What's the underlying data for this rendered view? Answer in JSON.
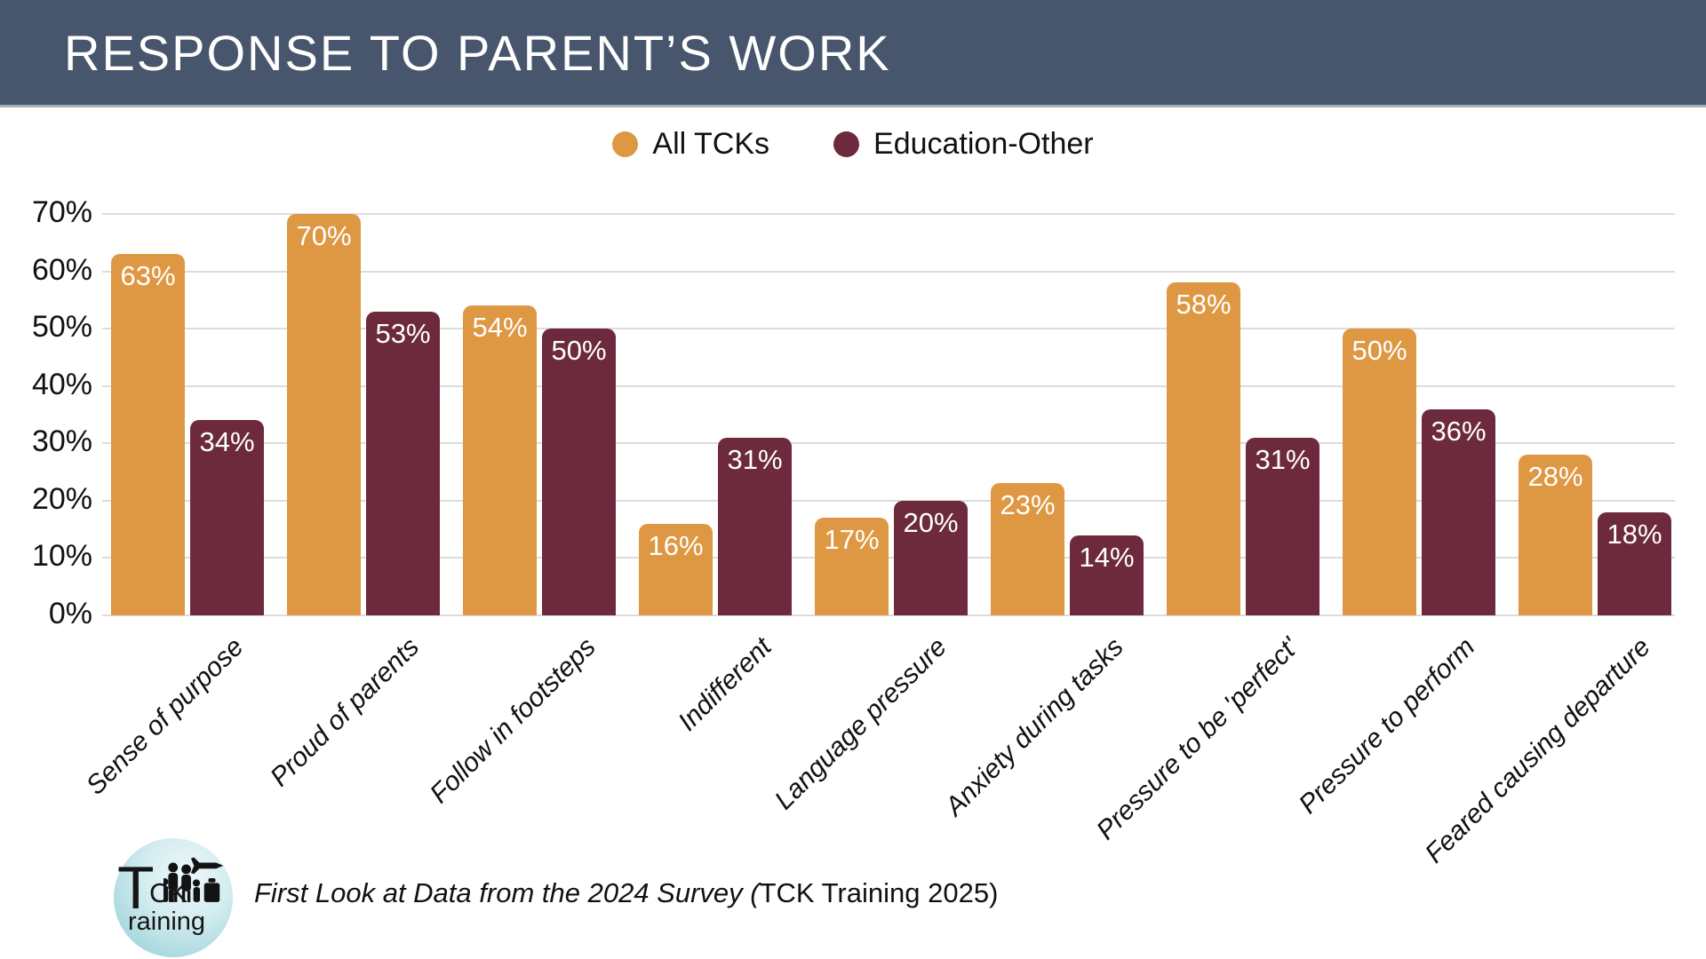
{
  "header": {
    "title": "RESPONSE TO PARENT’S WORK"
  },
  "legend": {
    "items": [
      {
        "label": "All TCKs",
        "color": "#DE9843"
      },
      {
        "label": "Education-Other",
        "color": "#6C2A3C"
      }
    ]
  },
  "chart_data": {
    "type": "bar",
    "title": "RESPONSE TO PARENT’S WORK",
    "categories": [
      "Sense of purpose",
      "Proud of parents",
      "Follow in footsteps",
      "Indifferent",
      "Language pressure",
      "Anxiety during tasks",
      "Pressure to be 'perfect'",
      "Pressure to perform",
      "Feared causing departure"
    ],
    "series": [
      {
        "name": "All TCKs",
        "color": "#DE9843",
        "values": [
          63,
          70,
          54,
          16,
          17,
          23,
          58,
          50,
          28
        ]
      },
      {
        "name": "Education-Other",
        "color": "#6C2A3C",
        "values": [
          34,
          53,
          50,
          31,
          20,
          14,
          31,
          36,
          18
        ]
      }
    ],
    "xlabel": "",
    "ylabel": "",
    "ylim": [
      0,
      70
    ],
    "y_tick_step": 10,
    "y_tick_labels": [
      "0%",
      "10%",
      "20%",
      "30%",
      "40%",
      "50%",
      "60%",
      "70%"
    ],
    "value_label_suffix": "%",
    "value_label_color": "#FFFFFF",
    "grid": true,
    "legend_position": "top-center"
  },
  "footer": {
    "caption_italic": "First Look at Data from the 2024 Survey (",
    "caption_regular": "TCK Training 2025)",
    "logo": {
      "t": "T",
      "ck": "CK",
      "raining": "raining"
    }
  },
  "colors": {
    "header_bg": "#47566C",
    "grid": "#DCDCDC",
    "background": "#FFFFFF"
  }
}
